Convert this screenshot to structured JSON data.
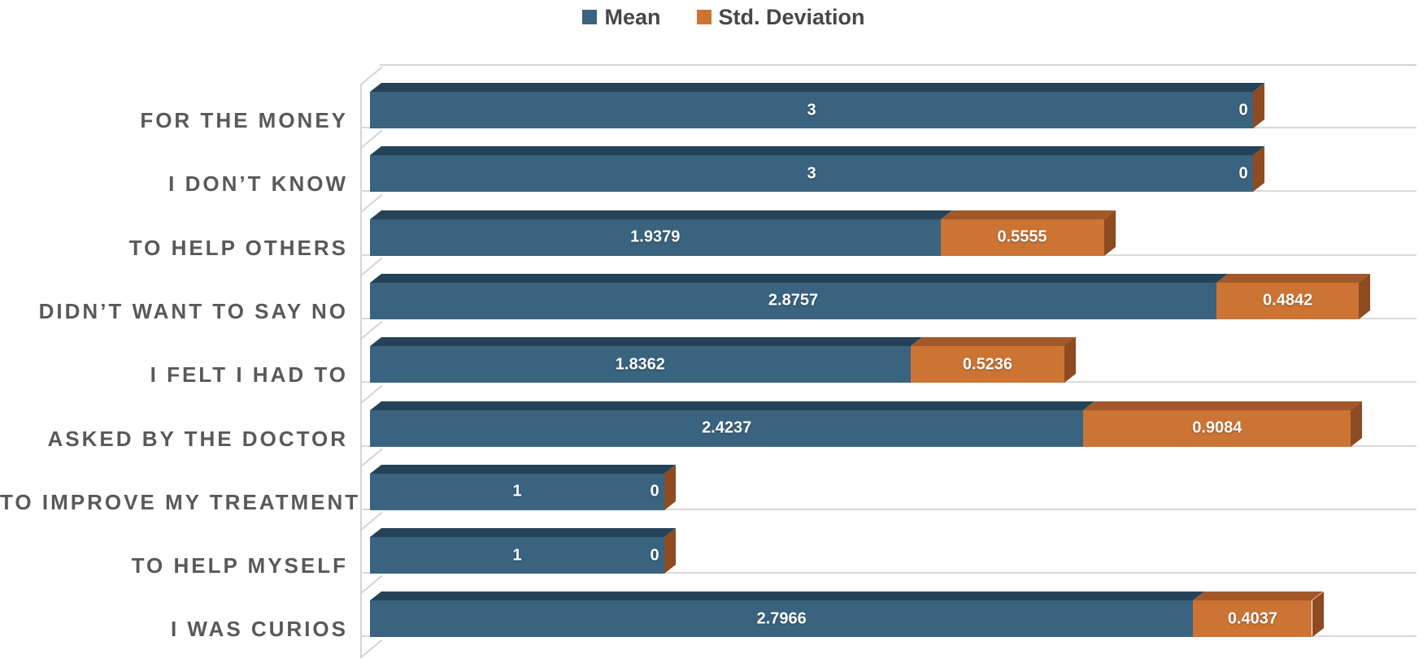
{
  "chart_data": {
    "type": "bar",
    "subtype": "3d-horizontal-stacked",
    "title": "",
    "categories": [
      "FOR THE MONEY",
      "I DON’T KNOW",
      "TO HELP OTHERS",
      "DIDN’T WANT TO SAY NO",
      "I FELT I HAD TO",
      "ASKED BY THE DOCTOR",
      "TO IMPROVE MY TREATMENT",
      "TO HELP MYSELF",
      "I WAS CURIOS"
    ],
    "series": [
      {
        "name": "Mean",
        "color": "#3A6380",
        "values": [
          3,
          3,
          1.9379,
          2.8757,
          1.8362,
          2.4237,
          1,
          1,
          2.7966
        ]
      },
      {
        "name": "Std. Deviation",
        "color": "#CC7434",
        "values": [
          0,
          0,
          0.5555,
          0.4842,
          0.5236,
          0.9084,
          0,
          0,
          0.4037
        ]
      }
    ],
    "xlim": [
      0,
      3.5
    ],
    "legend_position": "top-center",
    "gridlines": "row baseline floor lines only",
    "data_labels": "white, inside segments",
    "colors": {
      "mean_front": "#3A6380",
      "mean_top": "#254358",
      "sd_front": "#CC7434",
      "sd_top": "#A3582A",
      "sd_side": "#8E4A20",
      "gridline": "#D9D9D9",
      "category_text": "#595959",
      "legend_text": "#474747",
      "value_text": "#FFFFFF"
    }
  }
}
